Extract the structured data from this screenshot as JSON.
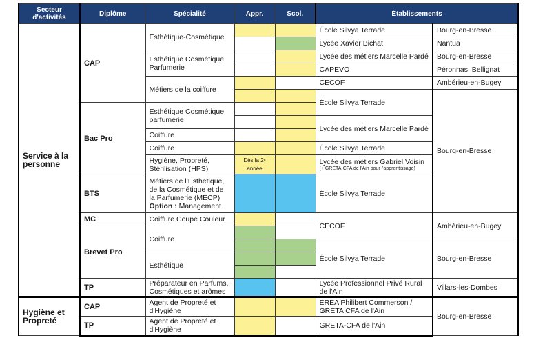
{
  "headers": {
    "secteur": "Secteur d'activités",
    "diplome": "Diplôme",
    "specialite": "Spécialité",
    "appr": "Appr.",
    "scol": "Scol.",
    "etablissements": "Établissements"
  },
  "sectors": [
    {
      "name": "Service à la personne"
    },
    {
      "name": "Hygiène et Propreté"
    }
  ],
  "diplomes": [
    "CAP",
    "Bac Pro",
    "BTS",
    "MC",
    "Brevet Pro",
    "TP",
    "CAP",
    "TP"
  ],
  "specialites": [
    "Esthétique-Cosmétique",
    "Esthétique Cosmétique Parfumerie",
    "Métiers de la coiffure",
    "Esthétique Cosmétique parfumerie",
    "Coiffure",
    "Hygiène, Propreté, Stérilisation (HPS)",
    "Métiers de l'Esthétique, de la Cosmétique et de la Parfumerie (MECP)",
    "Option :",
    "Management",
    "Coiffure Coupe Couleur",
    "Coiffure",
    "Esthétique",
    "Préparateur en Parfums, Cosmétiques et arômes",
    "Agent de Propreté et d'Hygiène",
    "Agent de Propreté et d'Hygiène"
  ],
  "appr_note": "Dès la 2ᵉ année",
  "etablissements": [
    "École Silvya Terrade",
    "Lycée Xavier Bichat",
    "Lycée des métiers Marcelle Pardé",
    "CAPEVO",
    "CECOF",
    "École Silvya Terrade",
    "Lycée des métiers Marcelle Pardé",
    "École Silvya Terrade",
    "Lycée des métiers Gabriel Voisin",
    "(+ GRETA-CFA de l'Ain pour l'apprentissage)",
    "École Silvya Terrade",
    "CECOF",
    "École Silvya Terrade",
    "Lycée Professionnel Privé Rural de l'Ain",
    "EREA Philibert Commerson / GRETA CFA de l'Ain",
    "GRETA-CFA de l'Ain"
  ],
  "villes": [
    "Bourg-en-Bresse",
    "Nantua",
    "Bourg-en-Bresse",
    "Péronnas, Bellignat",
    "Ambérieu-en-Bugey",
    "Bourg-en-Bresse",
    "Ambérieu-en-Bugey",
    "Bourg-en-Bresse",
    "Villars-les-Dombes",
    "Bourg-en-Bresse"
  ],
  "colors": {
    "header_bg": "#1f3f77",
    "apprentissage_yellow": "#fdf195",
    "scolaire_green": "#a9d18e",
    "bts_blue": "#57c3ee"
  }
}
